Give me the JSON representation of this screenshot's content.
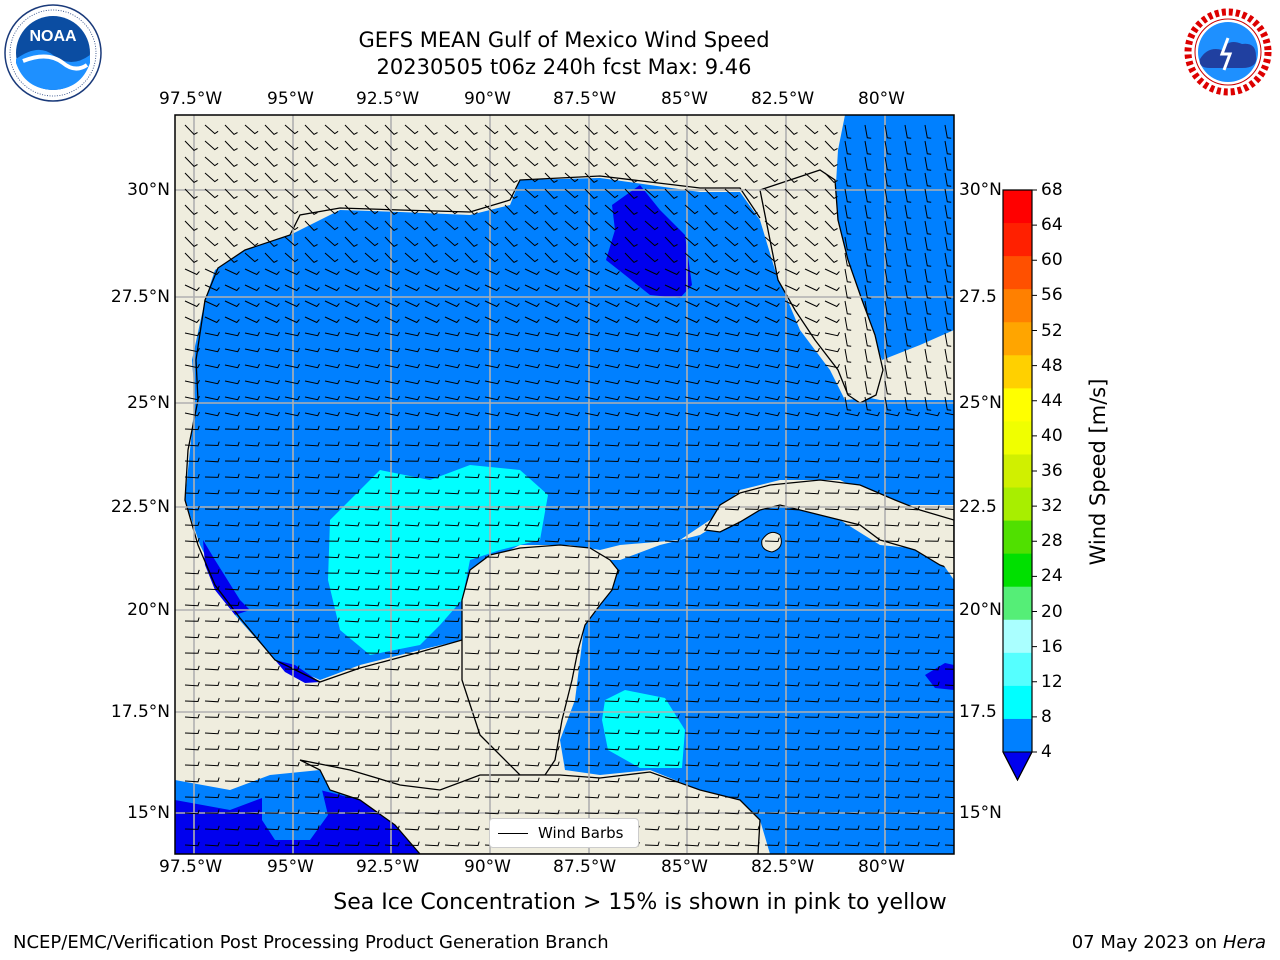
{
  "title_line1": "GEFS MEAN Gulf of Mexico Wind Speed",
  "title_line2": "20230505 t06z 240h fcst   Max: 9.46",
  "lon_labels": [
    "97.5°W",
    "95°W",
    "92.5°W",
    "90°W",
    "87.5°W",
    "85°W",
    "82.5°W",
    "80°W"
  ],
  "lat_labels_left": [
    "30°N",
    "27.5°N",
    "25°N",
    "22.5°N",
    "20°N",
    "17.5°N",
    "15°N"
  ],
  "lat_labels_right": [
    "30°N",
    "27.5",
    "25°N",
    "22.5",
    "20°N",
    "17.5",
    "15°N"
  ],
  "colorbar": {
    "title": "Wind Speed [m/s]",
    "ticks": [
      "68",
      "64",
      "60",
      "56",
      "52",
      "48",
      "44",
      "40",
      "36",
      "32",
      "28",
      "24",
      "20",
      "16",
      "12",
      "8",
      "4"
    ],
    "colors": [
      "#ff0000",
      "#ff2000",
      "#ff5000",
      "#ff8000",
      "#ffa500",
      "#ffd000",
      "#ffff00",
      "#f0ff00",
      "#d0f000",
      "#a8ee00",
      "#50e000",
      "#00e000",
      "#55ee77",
      "#aaffff",
      "#55ffff",
      "#00ffff",
      "#0080ff"
    ],
    "under_color": "#0000ee"
  },
  "legend": {
    "label": "Wind Barbs"
  },
  "note": "Sea Ice Concentration > 15% is shown in pink to yellow",
  "footer_left": "NCEP/EMC/Verification Post Processing Product Generation Branch",
  "footer_date": "07 May 2023 on",
  "footer_host": "Hera",
  "logos": {
    "left": {
      "name": "NOAA",
      "ring_text": "NATIONAL OCEANIC AND ATMOSPHERIC ADMINISTRATION · U.S. DEPARTMENT OF COMMERCE"
    },
    "right": {
      "name": "NATIONAL WEATHER SERVICE"
    }
  },
  "map_colors": {
    "land": "#efedde",
    "ocean_4_8": "#0080ff",
    "ocean_8_12": "#00ffff",
    "ocean_under_4": "#0000ee",
    "grid": "#b0b0b0"
  }
}
